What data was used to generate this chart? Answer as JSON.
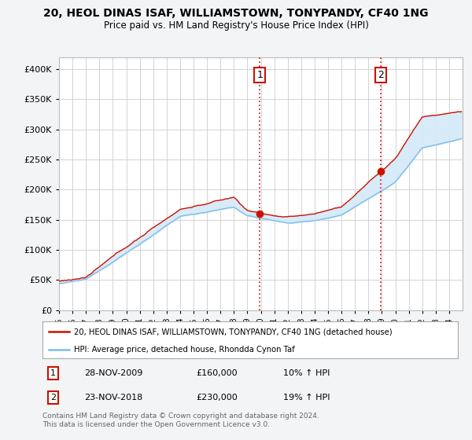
{
  "title": "20, HEOL DINAS ISAF, WILLIAMSTOWN, TONYPANDY, CF40 1NG",
  "subtitle": "Price paid vs. HM Land Registry's House Price Index (HPI)",
  "legend_line1": "20, HEOL DINAS ISAF, WILLIAMSTOWN, TONYPANDY, CF40 1NG (detached house)",
  "legend_line2": "HPI: Average price, detached house, Rhondda Cynon Taf",
  "transaction1_label": "1",
  "transaction1_date": "28-NOV-2009",
  "transaction1_price": "£160,000",
  "transaction1_hpi": "10% ↑ HPI",
  "transaction2_label": "2",
  "transaction2_date": "23-NOV-2018",
  "transaction2_price": "£230,000",
  "transaction2_hpi": "19% ↑ HPI",
  "footer": "Contains HM Land Registry data © Crown copyright and database right 2024.\nThis data is licensed under the Open Government Licence v3.0.",
  "hpi_color": "#7dbde8",
  "price_color": "#cc1100",
  "vline_color": "#cc1100",
  "fill_color": "#d6eaf8",
  "background_color": "#f2f4f5",
  "plot_bg_color": "#ffffff",
  "ylim": [
    0,
    420000
  ],
  "yticks": [
    0,
    50000,
    100000,
    150000,
    200000,
    250000,
    300000,
    350000,
    400000
  ],
  "year_start": 1995,
  "year_end": 2025,
  "transaction1_year": 2009.92,
  "transaction2_year": 2018.9,
  "transaction1_price_val": 160000,
  "transaction2_price_val": 230000
}
